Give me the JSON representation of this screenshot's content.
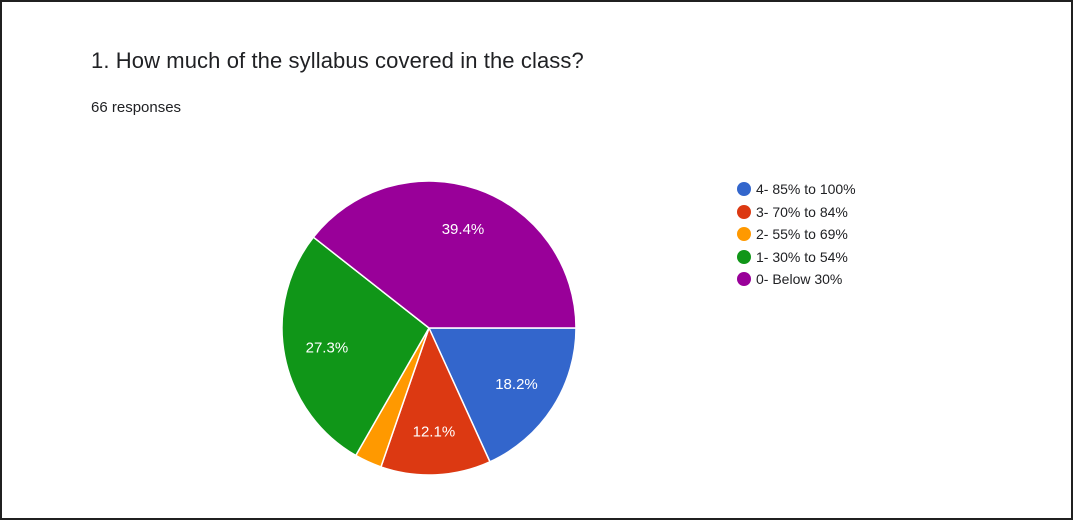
{
  "header": {
    "question_title": "1. How much of the syllabus covered in the class?",
    "responses": "66 responses"
  },
  "legend": {
    "items": [
      {
        "label": "4- 85% to 100%",
        "color": "#3366cc"
      },
      {
        "label": "3- 70% to 84%",
        "color": "#dc3912"
      },
      {
        "label": "2- 55% to 69%",
        "color": "#ff9900"
      },
      {
        "label": "1- 30% to 54%",
        "color": "#109618"
      },
      {
        "label": "0- Below 30%",
        "color": "#990099"
      }
    ]
  },
  "chart_data": {
    "type": "pie",
    "categories": [
      "4- 85% to 100%",
      "3- 70% to 84%",
      "2- 55% to 69%",
      "1- 30% to 54%",
      "0- Below 30%"
    ],
    "values": [
      18.2,
      12.1,
      3.0,
      27.3,
      39.4
    ],
    "data_labels": [
      "18.2%",
      "12.1%",
      "",
      "27.3%",
      "39.4%"
    ],
    "colors": [
      "#3366cc",
      "#dc3912",
      "#ff9900",
      "#109618",
      "#990099"
    ],
    "start_angle": "3 o'clock",
    "direction": "clockwise",
    "legend_position": "right"
  }
}
